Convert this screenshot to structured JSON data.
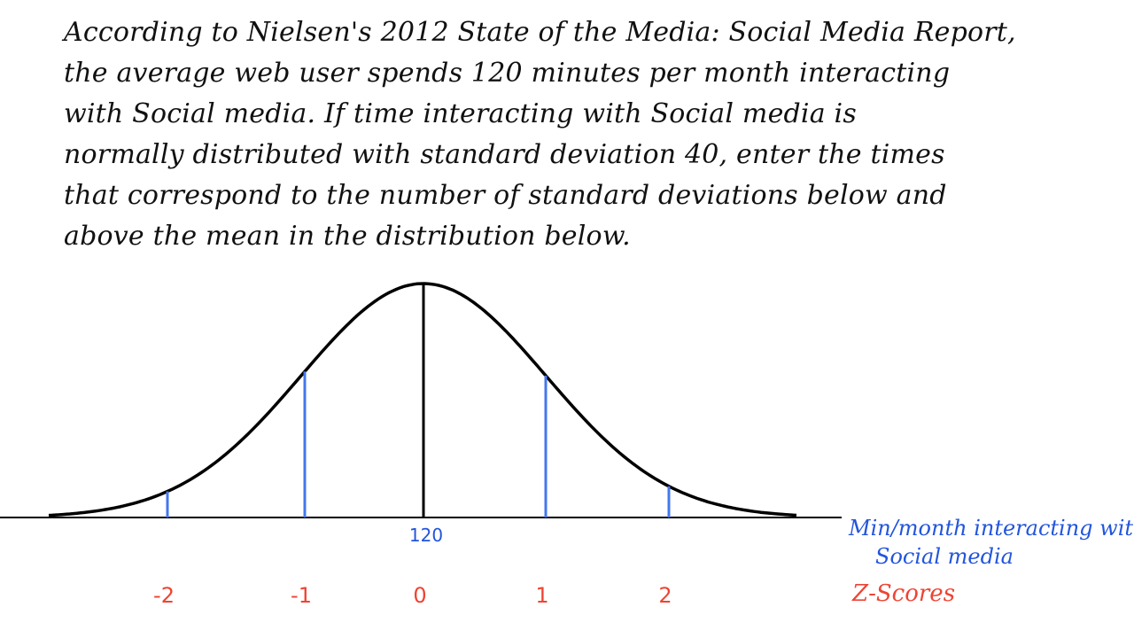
{
  "prompt": {
    "lines": [
      "According to Nielsen's 2012 State of the Media: Social Media Report,",
      "the average web user spends 120 minutes per month interacting",
      "with Social media. If time interacting with Social media is",
      "normally distributed with standard deviation 40, enter the times",
      "that correspond to the number of standard deviations below and",
      "above the mean in the distribution below."
    ]
  },
  "diagram": {
    "mean_label": "120",
    "x_axis_title_line1": "Min/month interacting with",
    "x_axis_title_line2": "Social media",
    "z_axis_title": "Z-Scores",
    "z_scores": [
      "-2",
      "-1",
      "0",
      "1",
      "2"
    ],
    "colors": {
      "curve": "#000000",
      "sd_lines": "#4477ee",
      "mean_line": "#000000",
      "axis_values": "#2255dd",
      "z_scores": "#ee4433"
    }
  }
}
